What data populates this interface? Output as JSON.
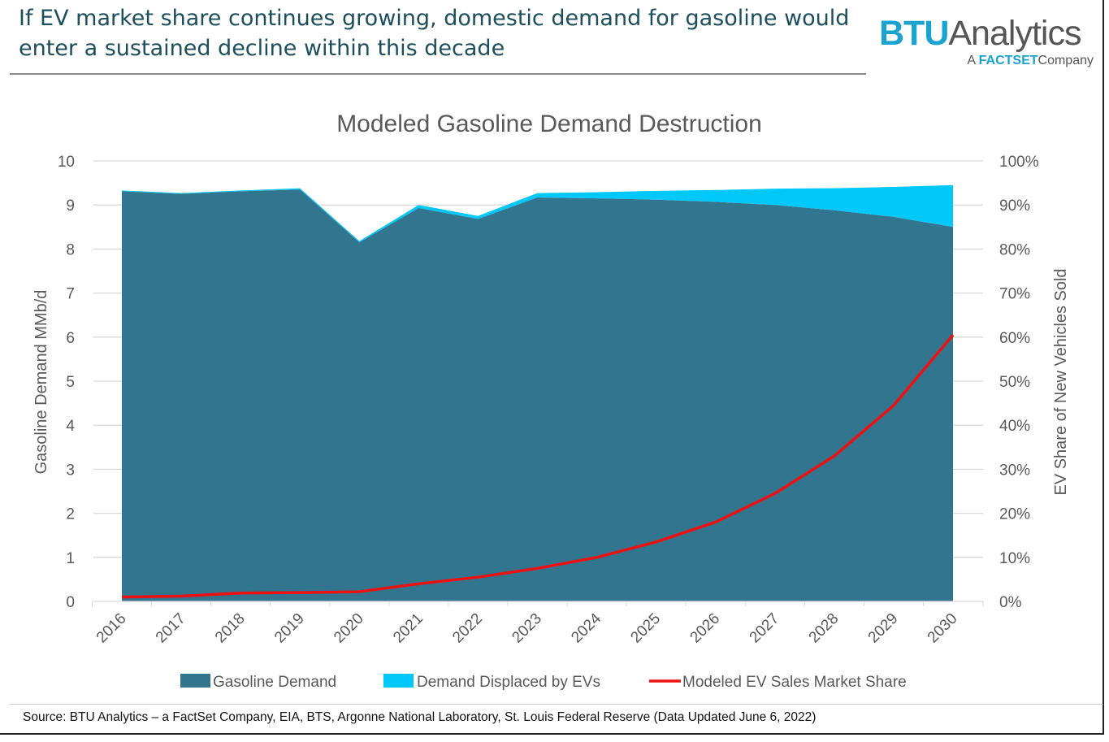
{
  "headline": "If EV market share continues growing, domestic demand for gasoline would enter a sustained decline within this decade",
  "logo": {
    "brand": "BTU",
    "name": "Analytics",
    "prefix": "A",
    "parent": "FACTSET",
    "suffix": "Company"
  },
  "source": "Source:  BTU Analytics – a FactSet Company, EIA, BTS, Argonne National Laboratory, St. Louis Federal Reserve (Data Updated June 6, 2022)",
  "chart_data": {
    "type": "area",
    "title": "Modeled Gasoline Demand Destruction",
    "categories": [
      "2016",
      "2017",
      "2018",
      "2019",
      "2020",
      "2021",
      "2022",
      "2023",
      "2024",
      "2025",
      "2026",
      "2027",
      "2028",
      "2029",
      "2030"
    ],
    "ylabel": "Gasoline Demand MMb/d",
    "ylabel_right": "EV Share of New Vehicles Sold",
    "ylim": [
      0,
      10
    ],
    "yticks": [
      "0",
      "1",
      "2",
      "3",
      "4",
      "5",
      "6",
      "7",
      "8",
      "9",
      "10"
    ],
    "ylim_right": [
      0,
      100
    ],
    "yticks_right": [
      "0%",
      "10%",
      "20%",
      "30%",
      "40%",
      "50%",
      "60%",
      "70%",
      "80%",
      "90%",
      "100%"
    ],
    "grid": true,
    "legend": "bottom",
    "series": [
      {
        "name": "Gasoline Demand",
        "kind": "stacked-area",
        "axis": "left",
        "color": "#31758f",
        "values": [
          9.31,
          9.25,
          9.31,
          9.35,
          8.15,
          8.93,
          8.68,
          9.17,
          9.15,
          9.12,
          9.07,
          9.0,
          8.88,
          8.73,
          8.5
        ]
      },
      {
        "name": "Demand Displaced by EVs",
        "kind": "stacked-area",
        "axis": "left",
        "color": "#00c8fb",
        "values": [
          0.02,
          0.02,
          0.02,
          0.03,
          0.03,
          0.07,
          0.07,
          0.1,
          0.14,
          0.2,
          0.27,
          0.37,
          0.5,
          0.68,
          0.95
        ]
      },
      {
        "name": "Modeled EV Sales Market Share",
        "kind": "line",
        "axis": "right",
        "color": "#ee1111",
        "values": [
          1.0,
          1.2,
          1.9,
          2.0,
          2.2,
          4.0,
          5.5,
          7.5,
          10.0,
          13.5,
          18.0,
          24.5,
          33.0,
          44.5,
          60.5
        ]
      }
    ]
  }
}
